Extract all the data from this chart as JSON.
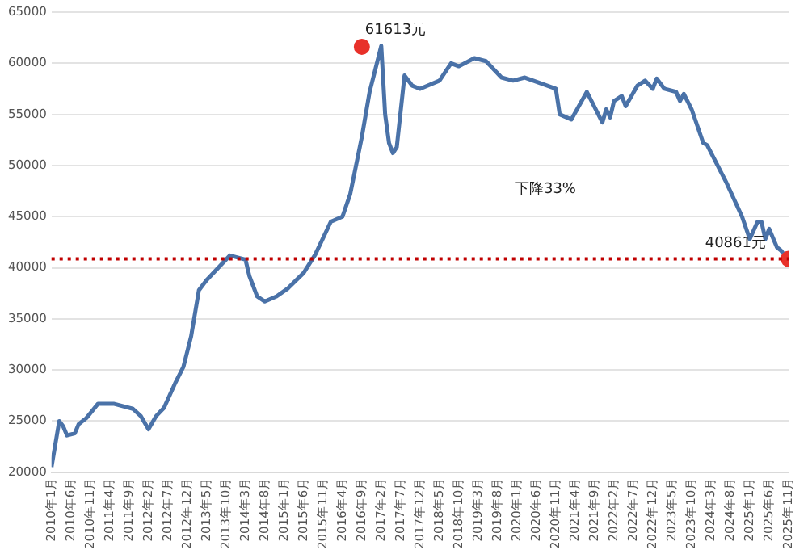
{
  "chart_data": {
    "type": "line",
    "xlim": [
      "2010-01",
      "2025-11"
    ],
    "xticks": [
      {
        "value": "2010-01",
        "label": "2010年1月"
      },
      {
        "value": "2010-06",
        "label": "2010年6月"
      },
      {
        "value": "2010-11",
        "label": "2010年11月"
      },
      {
        "value": "2011-04",
        "label": "2011年4月"
      },
      {
        "value": "2011-09",
        "label": "2011年9月"
      },
      {
        "value": "2012-02",
        "label": "2012年2月"
      },
      {
        "value": "2012-07",
        "label": "2012年7月"
      },
      {
        "value": "2012-12",
        "label": "2012年12月"
      },
      {
        "value": "2013-05",
        "label": "2013年5月"
      },
      {
        "value": "2013-10",
        "label": "2013年10月"
      },
      {
        "value": "2014-03",
        "label": "2014年3月"
      },
      {
        "value": "2014-08",
        "label": "2014年8月"
      },
      {
        "value": "2015-01",
        "label": "2015年1月"
      },
      {
        "value": "2015-06",
        "label": "2015年6月"
      },
      {
        "value": "2015-11",
        "label": "2015年11月"
      },
      {
        "value": "2016-04",
        "label": "2016年4月"
      },
      {
        "value": "2016-09",
        "label": "2016年9月"
      },
      {
        "value": "2017-02",
        "label": "2017年2月"
      },
      {
        "value": "2017-07",
        "label": "2017年7月"
      },
      {
        "value": "2017-12",
        "label": "2017年12月"
      },
      {
        "value": "2018-05",
        "label": "2018年5月"
      },
      {
        "value": "2018-10",
        "label": "2018年10月"
      },
      {
        "value": "2019-03",
        "label": "2019年3月"
      },
      {
        "value": "2019-08",
        "label": "2019年8月"
      },
      {
        "value": "2020-01",
        "label": "2020年1月"
      },
      {
        "value": "2020-06",
        "label": "2020年6月"
      },
      {
        "value": "2020-11",
        "label": "2020年11月"
      },
      {
        "value": "2021-04",
        "label": "2021年4月"
      },
      {
        "value": "2021-09",
        "label": "2021年9月"
      },
      {
        "value": "2022-02",
        "label": "2022年2月"
      },
      {
        "value": "2022-07",
        "label": "2022年7月"
      },
      {
        "value": "2022-12",
        "label": "2022年12月"
      },
      {
        "value": "2023-05",
        "label": "2023年5月"
      },
      {
        "value": "2023-10",
        "label": "2023年10月"
      },
      {
        "value": "2024-03",
        "label": "2024年3月"
      },
      {
        "value": "2024-08",
        "label": "2024年8月"
      },
      {
        "value": "2025-01",
        "label": "2025年1月"
      },
      {
        "value": "2025-06",
        "label": "2025年6月"
      },
      {
        "value": "2025-11",
        "label": "2025年11月"
      }
    ],
    "ylim": [
      20000,
      65000
    ],
    "yticks": [
      20000,
      25000,
      30000,
      35000,
      40000,
      45000,
      50000,
      55000,
      60000,
      65000
    ],
    "grid": "y",
    "legend": false,
    "marker": "none",
    "series": [
      {
        "color": "#4a72a8",
        "x": [
          "2010-01",
          "2010-03",
          "2010-04",
          "2010-05",
          "2010-07",
          "2010-08",
          "2010-10",
          "2011-01",
          "2011-05",
          "2011-10",
          "2011-12",
          "2012-02",
          "2012-04",
          "2012-06",
          "2012-09",
          "2012-11",
          "2013-01",
          "2013-03",
          "2013-05",
          "2013-08",
          "2013-11",
          "2014-03",
          "2014-04",
          "2014-06",
          "2014-08",
          "2014-11",
          "2015-02",
          "2015-06",
          "2015-09",
          "2016-01",
          "2016-04",
          "2016-06",
          "2016-09",
          "2016-11",
          "2016-12",
          "2017-02",
          "2017-03",
          "2017-04",
          "2017-05",
          "2017-06",
          "2017-08",
          "2017-10",
          "2017-12",
          "2018-05",
          "2018-08",
          "2018-10",
          "2019-02",
          "2019-05",
          "2019-09",
          "2019-12",
          "2020-03",
          "2020-11",
          "2020-12",
          "2021-03",
          "2021-07",
          "2021-11",
          "2021-12",
          "2022-01",
          "2022-02",
          "2022-04",
          "2022-05",
          "2022-08",
          "2022-10",
          "2022-12",
          "2023-01",
          "2023-03",
          "2023-06",
          "2023-07",
          "2023-08",
          "2023-10",
          "2024-01",
          "2024-02",
          "2024-07",
          "2024-11",
          "2025-01",
          "2025-03",
          "2025-04",
          "2025-05",
          "2025-06",
          "2025-08",
          "2025-09",
          "2025-10",
          "2025-11"
        ],
        "values": [
          20500,
          25000,
          24500,
          23600,
          23800,
          24700,
          25300,
          26700,
          26700,
          26200,
          25500,
          24200,
          25500,
          26300,
          28800,
          30300,
          33300,
          37800,
          38800,
          40000,
          41200,
          40800,
          39200,
          37200,
          36700,
          37200,
          38000,
          39500,
          41300,
          44500,
          45000,
          47200,
          52800,
          57200,
          58700,
          61700,
          55000,
          52200,
          51200,
          51800,
          58800,
          57800,
          57500,
          58300,
          60000,
          59700,
          60500,
          60200,
          58600,
          58300,
          58600,
          57500,
          55000,
          54500,
          57200,
          54200,
          55500,
          54700,
          56300,
          56800,
          55800,
          57800,
          58300,
          57500,
          58500,
          57500,
          57200,
          56300,
          57000,
          55500,
          52200,
          52000,
          48300,
          45000,
          42800,
          44500,
          44500,
          42800,
          43800,
          42000,
          41700,
          41200,
          40861
        ]
      },
      {
        "type": "scatter",
        "color": "#e8312a",
        "marker": "circle",
        "x": [
          "2016-09",
          "2025-11"
        ],
        "values": [
          61613,
          40861
        ]
      }
    ],
    "ref_lines": [
      {
        "axis": "y",
        "value": 40861,
        "color": "#c00000",
        "line_style": "dotted"
      }
    ],
    "annotations": [
      {
        "text": "61613元",
        "x": "2016-09",
        "y": 61613
      },
      {
        "text": "40861元",
        "x": "2025-11",
        "y": 40861
      },
      "下降33%"
    ]
  }
}
